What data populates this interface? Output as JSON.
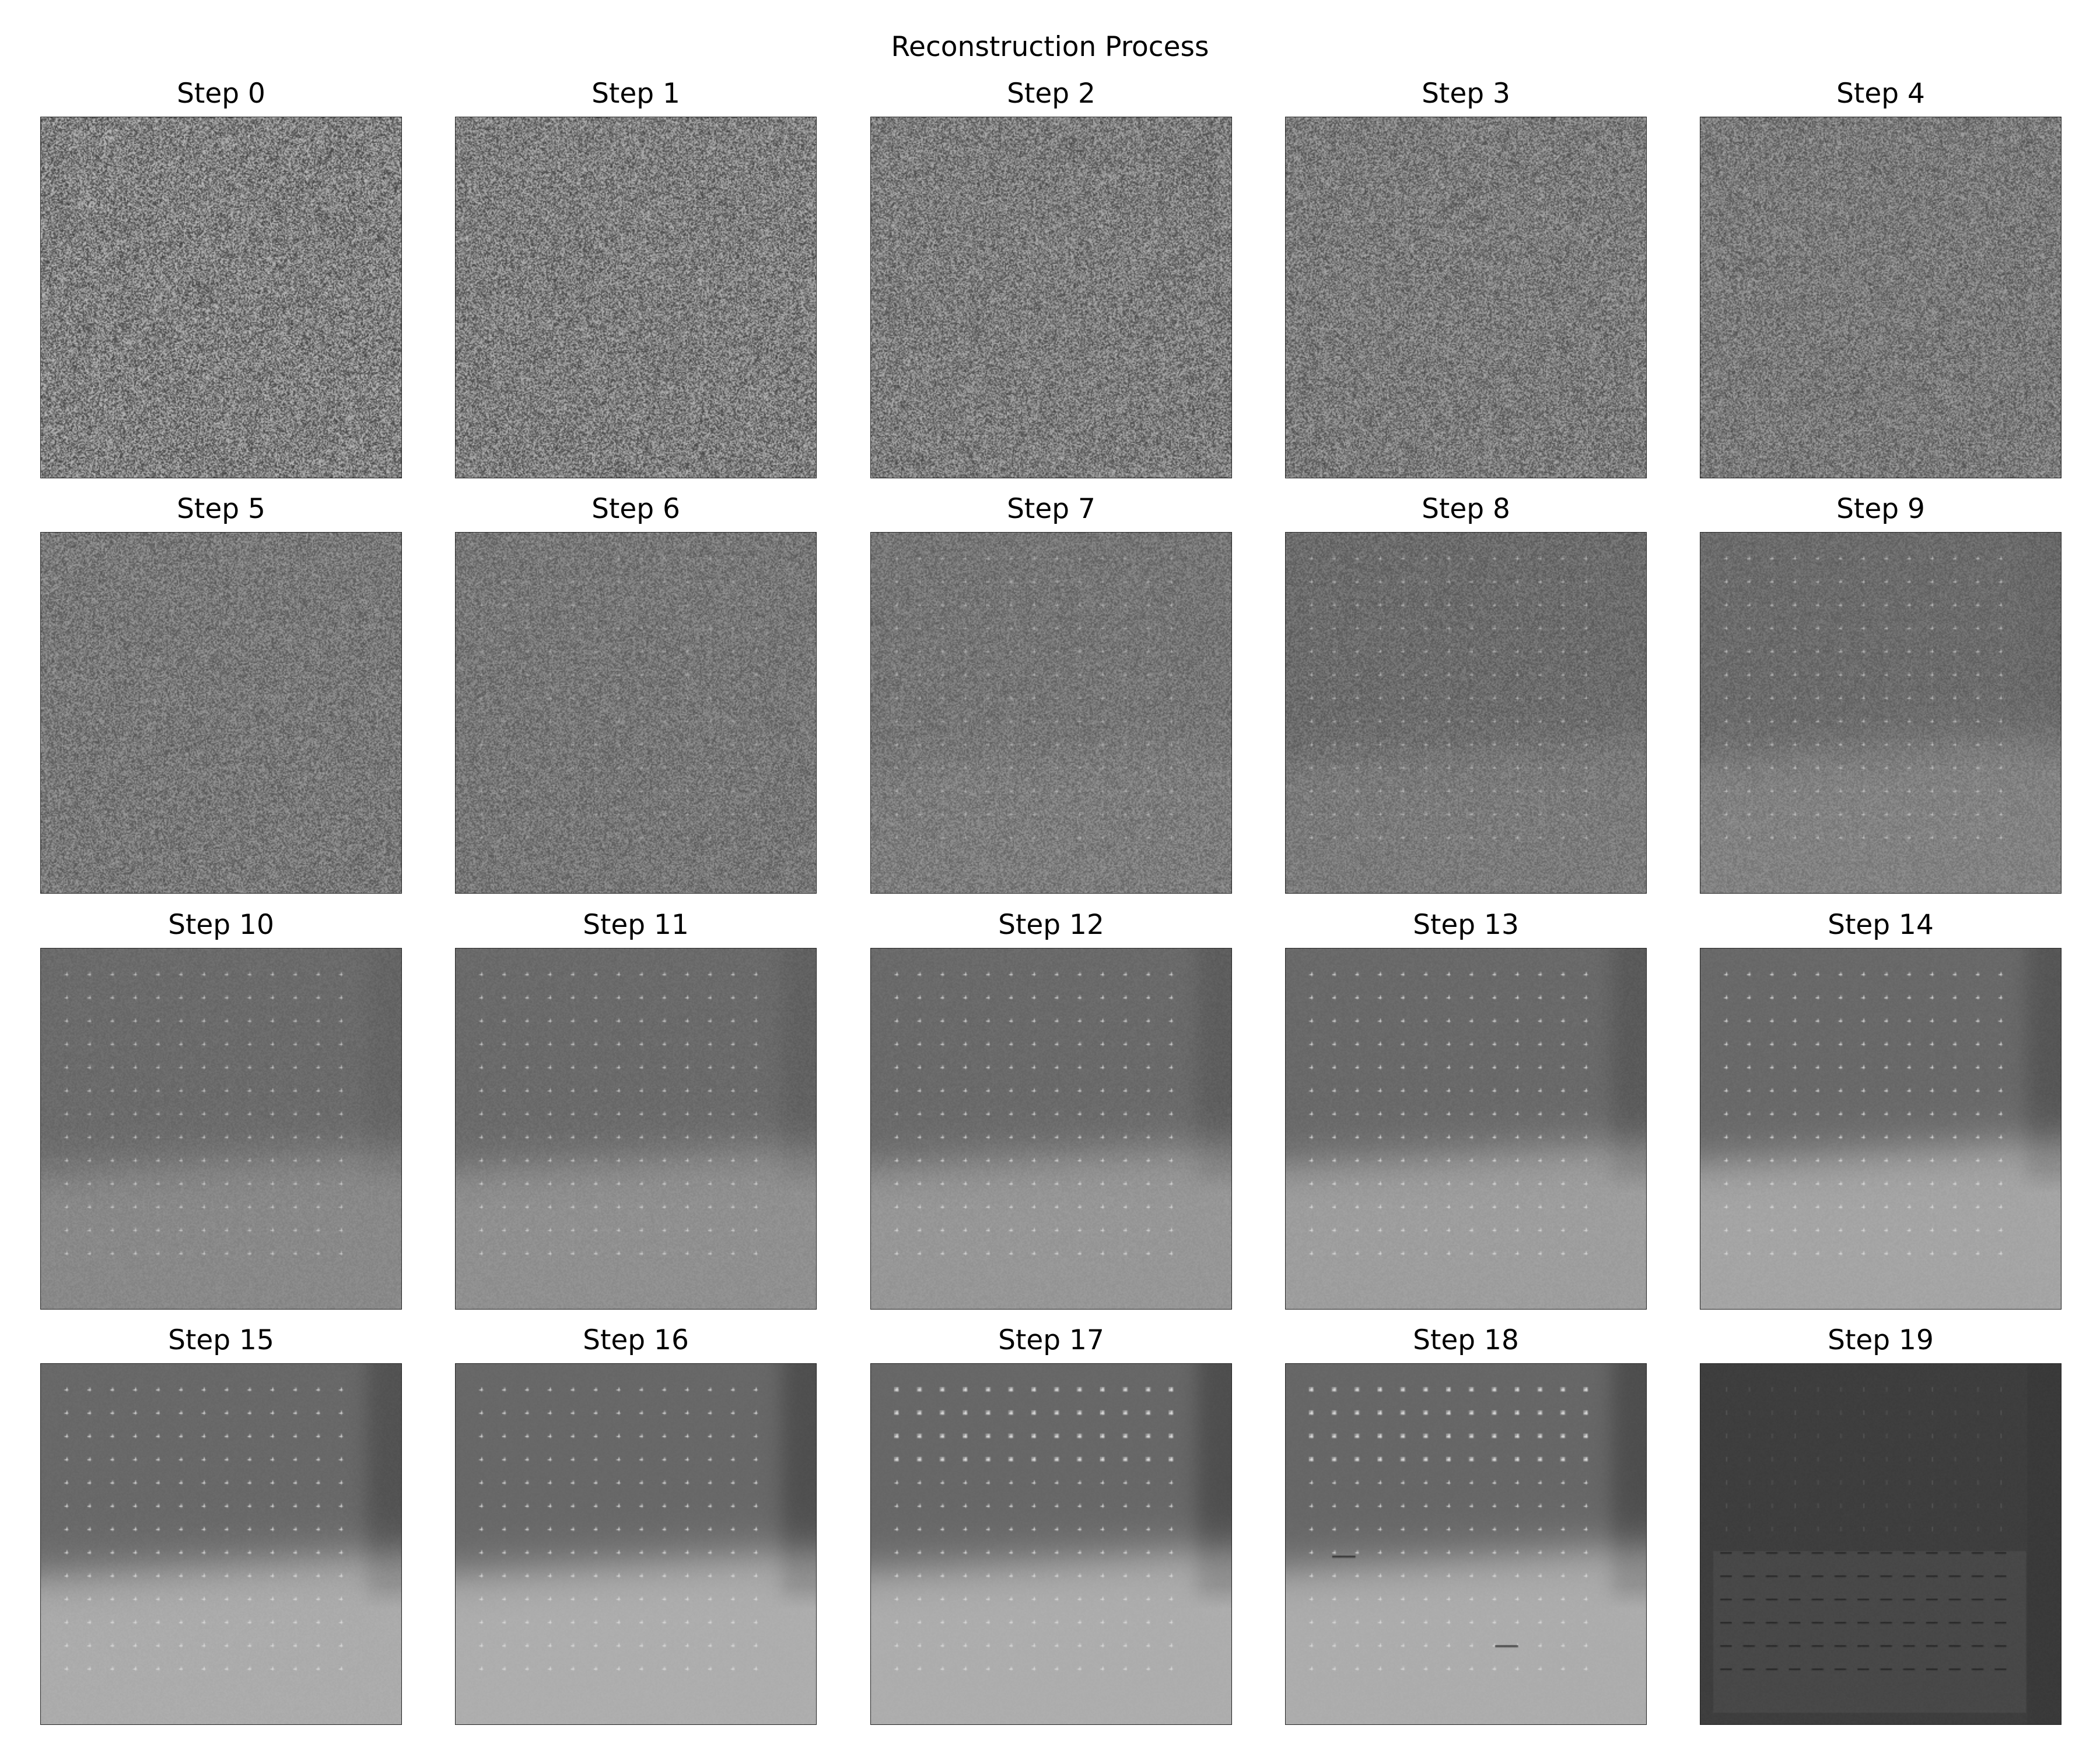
{
  "figure": {
    "title": "Reconstruction Process"
  },
  "panels": [
    {
      "title": "Step 0"
    },
    {
      "title": "Step 1"
    },
    {
      "title": "Step 2"
    },
    {
      "title": "Step 3"
    },
    {
      "title": "Step 4"
    },
    {
      "title": "Step 5"
    },
    {
      "title": "Step 6"
    },
    {
      "title": "Step 7"
    },
    {
      "title": "Step 8"
    },
    {
      "title": "Step 9"
    },
    {
      "title": "Step 10"
    },
    {
      "title": "Step 11"
    },
    {
      "title": "Step 12"
    },
    {
      "title": "Step 13"
    },
    {
      "title": "Step 14"
    },
    {
      "title": "Step 15"
    },
    {
      "title": "Step 16"
    },
    {
      "title": "Step 17"
    },
    {
      "title": "Step 18"
    },
    {
      "title": "Step 19"
    }
  ],
  "colors": {
    "background": "#ffffff",
    "text": "#000000",
    "noise_gray": "#808080"
  }
}
